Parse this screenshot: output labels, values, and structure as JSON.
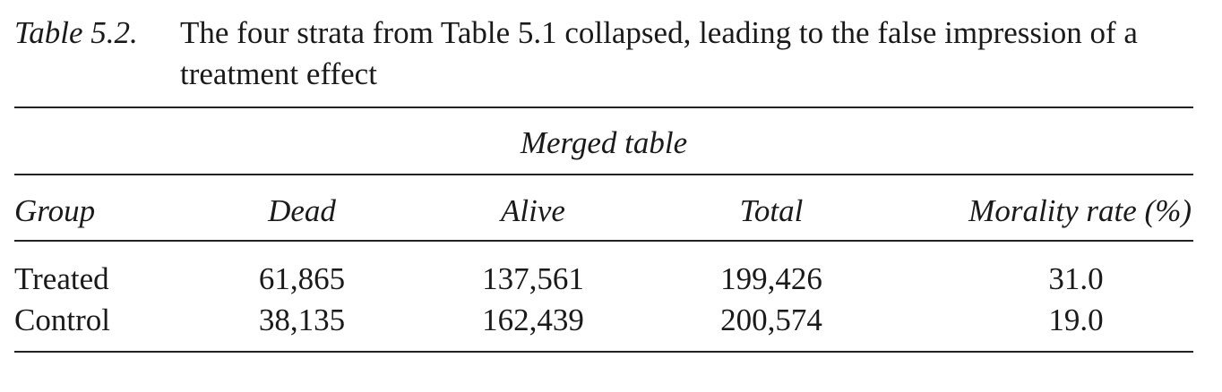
{
  "caption": {
    "label": "Table 5.2.",
    "text": "The four strata from Table 5.1 collapsed, leading to the false impression of a treatment effect"
  },
  "table": {
    "section_title": "Merged table",
    "headers": {
      "group": "Group",
      "dead": "Dead",
      "alive": "Alive",
      "total": "Total",
      "rate": "Morality rate (%)"
    },
    "rows": [
      {
        "group": "Treated",
        "dead": "61,865",
        "alive": "137,561",
        "total": "199,426",
        "rate": "31.0"
      },
      {
        "group": "Control",
        "dead": "38,135",
        "alive": "162,439",
        "total": "200,574",
        "rate": "19.0"
      }
    ]
  }
}
